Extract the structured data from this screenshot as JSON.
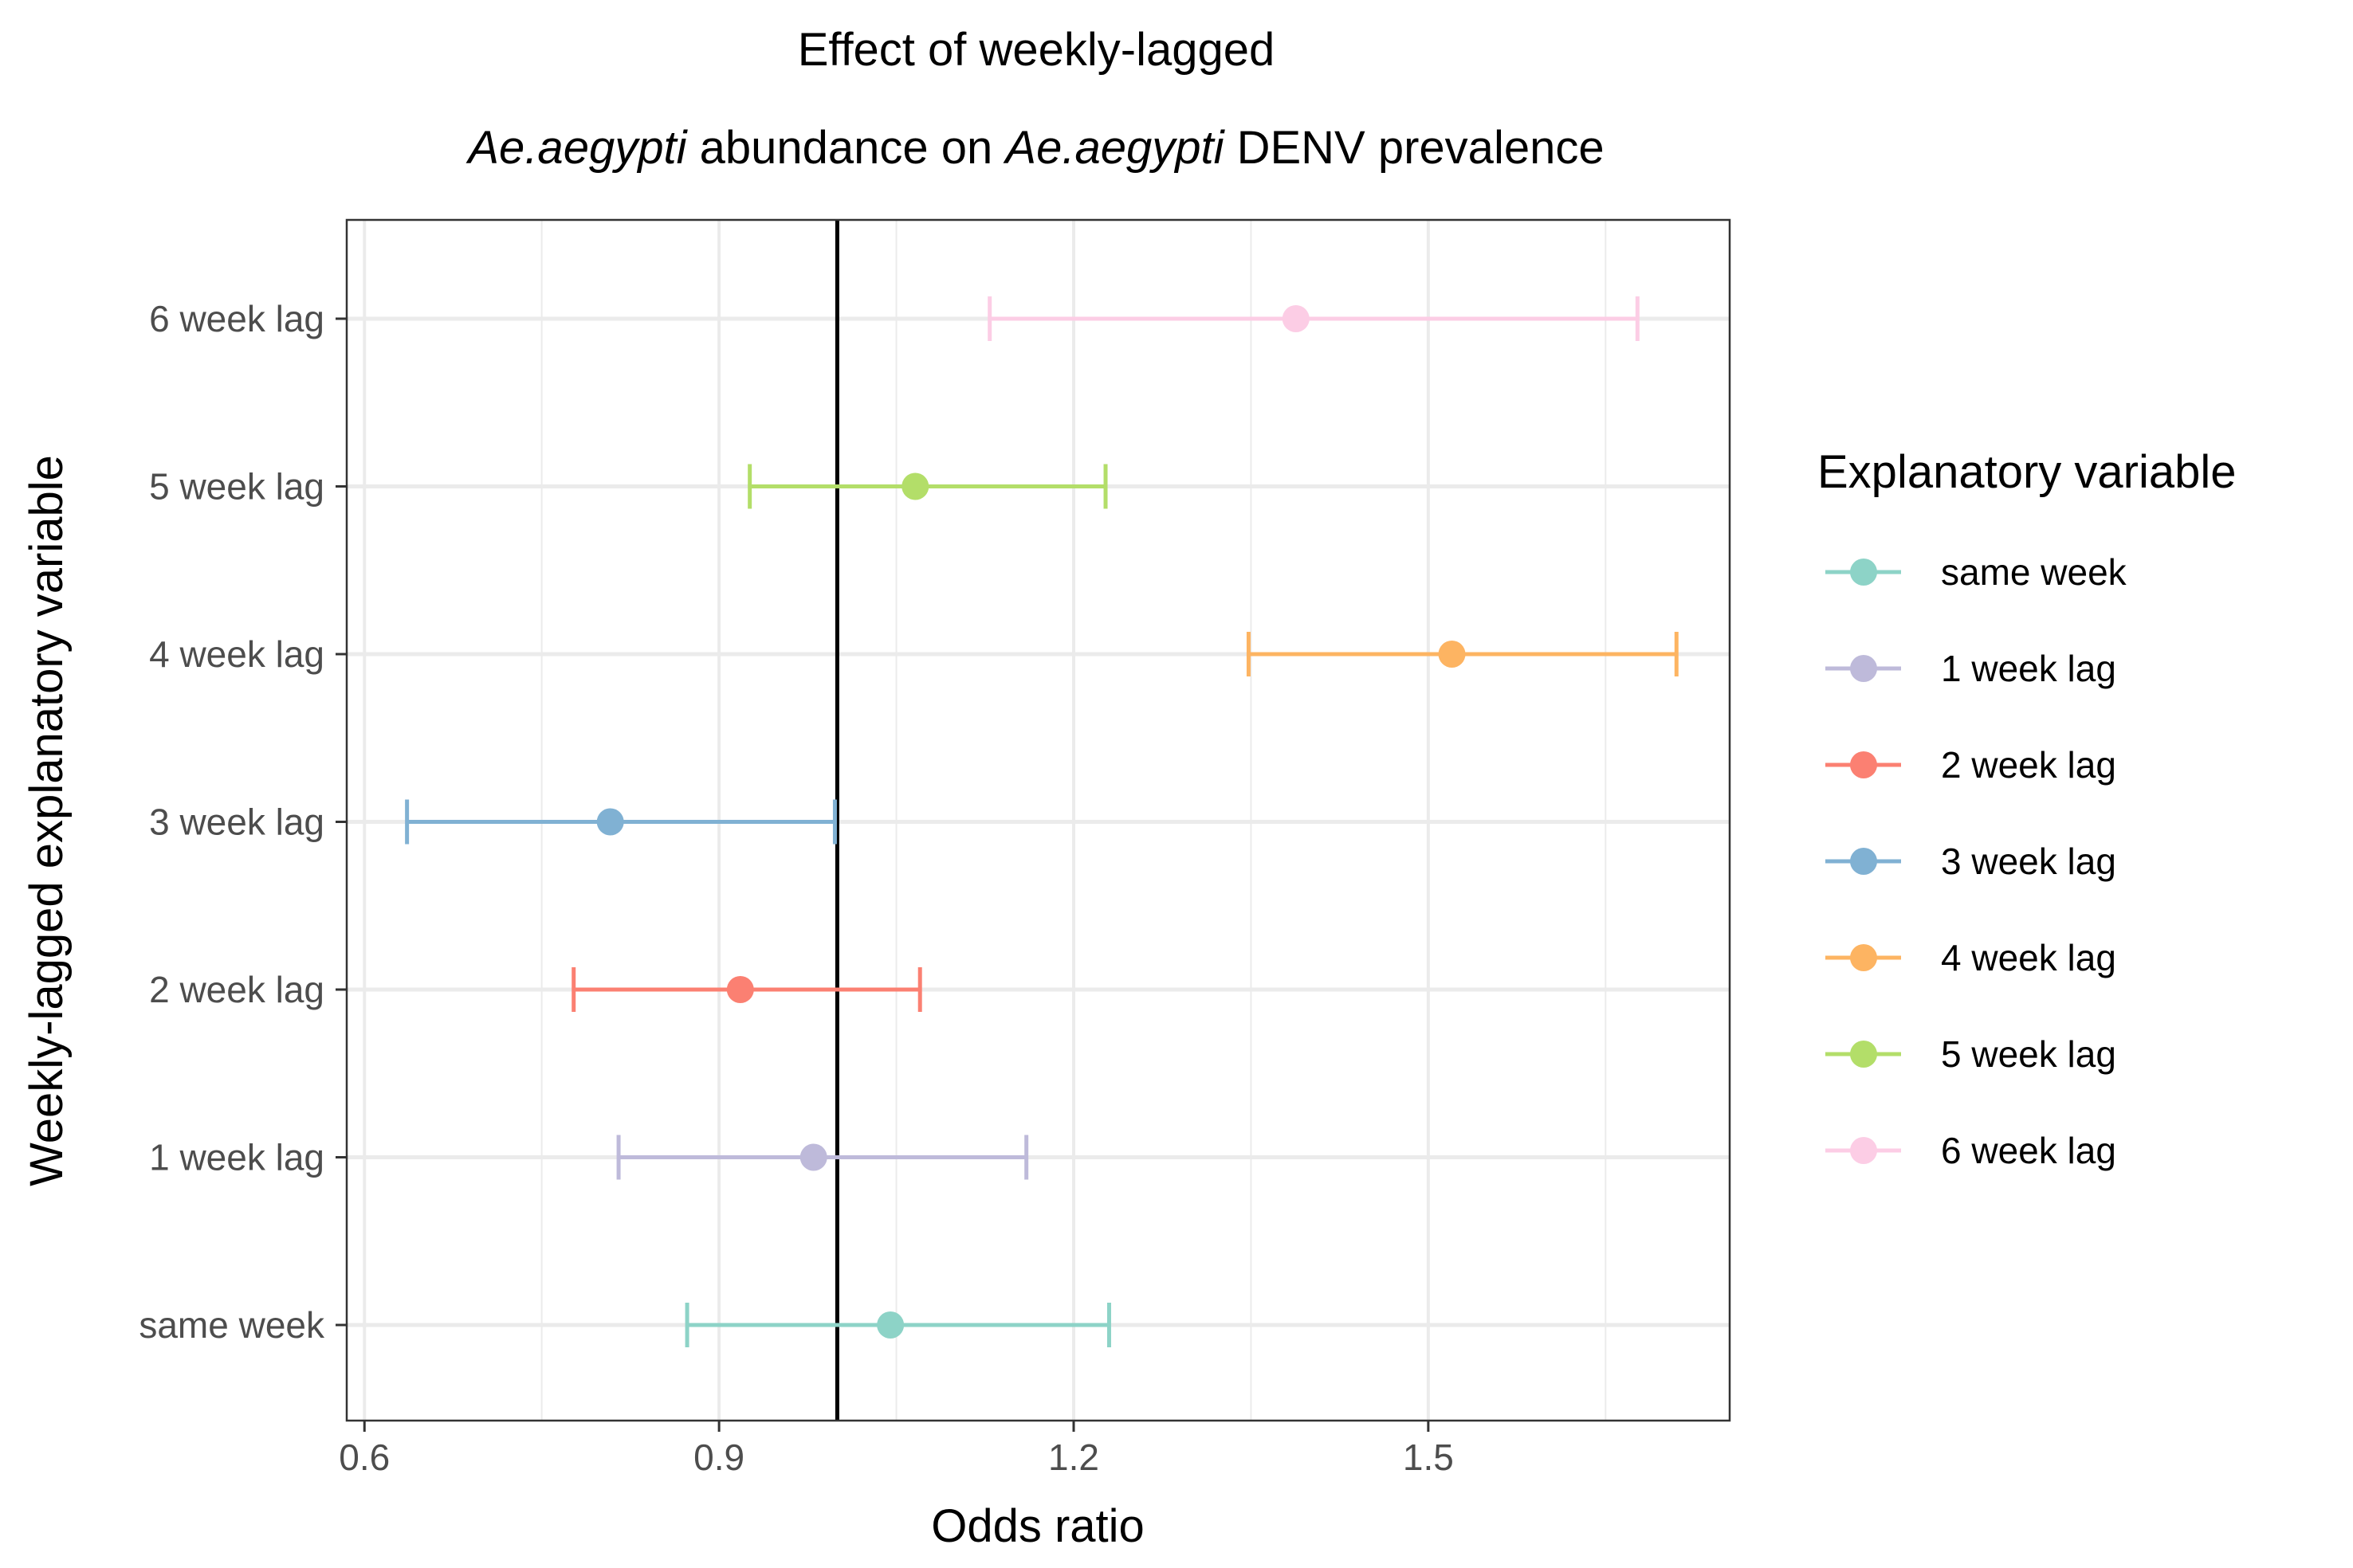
{
  "chart_data": {
    "type": "scatter",
    "title_line1": "Effect of weekly-lagged",
    "title_line2": {
      "part1": "Ae.aegypti",
      "part2": " abundance on ",
      "part3": "Ae.aegypti",
      "part4": " DENV prevalence"
    },
    "xlabel": "Odds ratio",
    "ylabel": "Weekly-lagged explanatory variable",
    "xlim": [
      0.585,
      1.755
    ],
    "x_ticks": [
      0.6,
      0.9,
      1.2,
      1.5
    ],
    "x_tick_labels": [
      "0.6",
      "0.9",
      "1.2",
      "1.5"
    ],
    "x_minor_ticks": [
      0.75,
      1.05,
      1.35,
      1.65
    ],
    "reference_line_x": 1.0,
    "grid": true,
    "categories": [
      "same week",
      "1 week lag",
      "2 week lag",
      "3 week lag",
      "4 week lag",
      "5 week lag",
      "6 week lag"
    ],
    "series": [
      {
        "name": "same week",
        "estimate": 1.045,
        "lower": 0.873,
        "upper": 1.23,
        "color": "#8dd3c7"
      },
      {
        "name": "1 week lag",
        "estimate": 0.98,
        "lower": 0.815,
        "upper": 1.16,
        "color": "#bebada"
      },
      {
        "name": "2 week lag",
        "estimate": 0.918,
        "lower": 0.777,
        "upper": 1.07,
        "color": "#fb8072"
      },
      {
        "name": "3 week lag",
        "estimate": 0.808,
        "lower": 0.636,
        "upper": 0.998,
        "color": "#80b1d3"
      },
      {
        "name": "4 week lag",
        "estimate": 1.52,
        "lower": 1.348,
        "upper": 1.71,
        "color": "#fdb462"
      },
      {
        "name": "5 week lag",
        "estimate": 1.066,
        "lower": 0.926,
        "upper": 1.227,
        "color": "#b3de69"
      },
      {
        "name": "6 week lag",
        "estimate": 1.388,
        "lower": 1.129,
        "upper": 1.677,
        "color": "#fccde5"
      }
    ],
    "legend": {
      "title": "Explanatory variable",
      "placement": "right",
      "items": [
        "same week",
        "1 week lag",
        "2 week lag",
        "3 week lag",
        "4 week lag",
        "5 week lag",
        "6 week lag"
      ]
    }
  }
}
